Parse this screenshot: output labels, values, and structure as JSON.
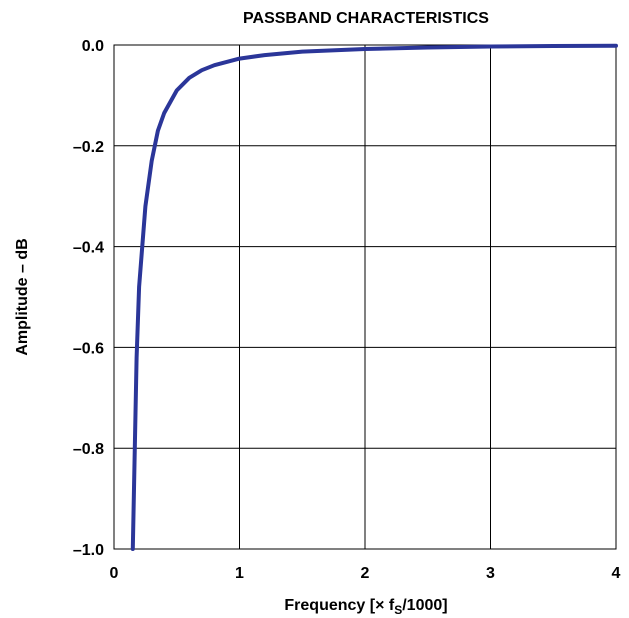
{
  "chart_data": {
    "type": "line",
    "title": "PASSBAND CHARACTERISTICS",
    "xlabel": "Frequency [× f",
    "xlabel_sub": "S",
    "xlabel_tail": "/1000]",
    "ylabel": "Amplitude – dB",
    "xlim": [
      0,
      4
    ],
    "ylim": [
      -1.0,
      0.0
    ],
    "x_ticks": [
      0,
      1,
      2,
      3,
      4
    ],
    "x_tick_labels": [
      "0",
      "1",
      "2",
      "3",
      "4"
    ],
    "y_ticks": [
      0.0,
      -0.2,
      -0.4,
      -0.6,
      -0.8,
      -1.0
    ],
    "y_tick_labels": [
      "0.0",
      "–0.2",
      "–0.4",
      "–0.6",
      "–0.8",
      "–1.0"
    ],
    "grid": true,
    "series": [
      {
        "color": "#2b3699",
        "x": [
          0.15,
          0.18,
          0.2,
          0.25,
          0.3,
          0.35,
          0.4,
          0.5,
          0.6,
          0.7,
          0.8,
          1.0,
          1.2,
          1.5,
          2.0,
          2.5,
          3.0,
          3.5,
          4.0
        ],
        "y": [
          -1.0,
          -0.62,
          -0.48,
          -0.32,
          -0.23,
          -0.17,
          -0.135,
          -0.09,
          -0.065,
          -0.05,
          -0.04,
          -0.027,
          -0.02,
          -0.013,
          -0.008,
          -0.005,
          -0.003,
          -0.002,
          -0.0015
        ]
      }
    ]
  }
}
